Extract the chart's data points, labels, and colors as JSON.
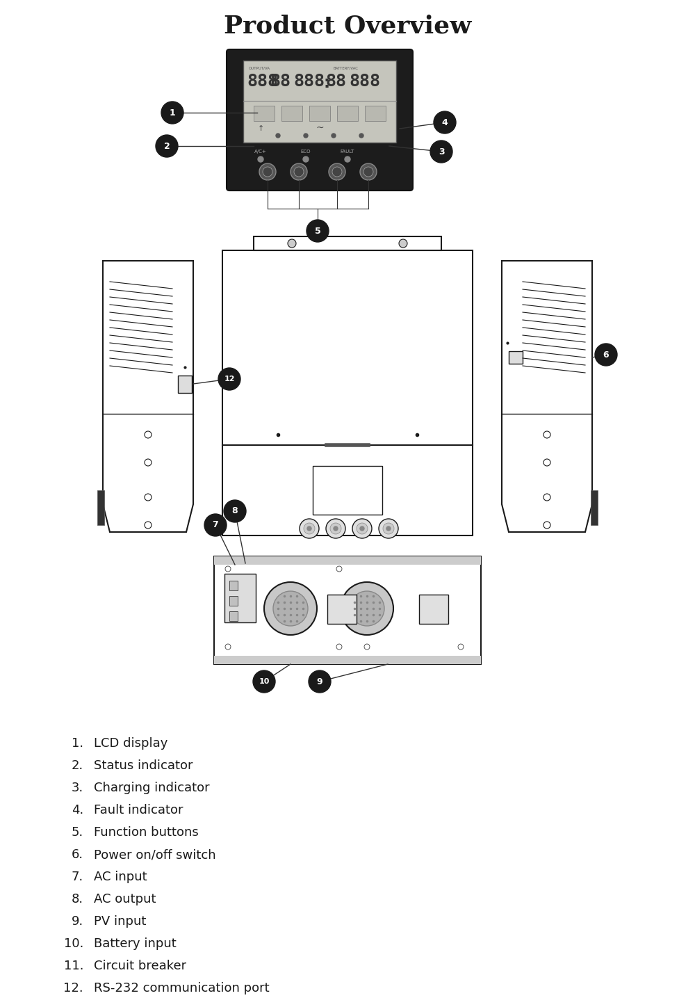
{
  "title": "Product Overview",
  "title_fontsize": 26,
  "title_fontweight": "bold",
  "bg_color": "#ffffff",
  "line_color": "#1a1a1a",
  "label_items": [
    [
      "1.",
      "LCD display"
    ],
    [
      "2.",
      "Status indicator"
    ],
    [
      "3.",
      "Charging indicator"
    ],
    [
      "4.",
      "Fault indicator"
    ],
    [
      "5.",
      "Function buttons"
    ],
    [
      "6.",
      "Power on/off switch"
    ],
    [
      "7.",
      "AC input"
    ],
    [
      "8.",
      "AC output"
    ],
    [
      "9.",
      "PV input"
    ],
    [
      "10.",
      "Battery input"
    ],
    [
      "11.",
      "Circuit breaker"
    ],
    [
      "12.",
      "RS-232 communication port"
    ]
  ],
  "label_fontsize": 13
}
